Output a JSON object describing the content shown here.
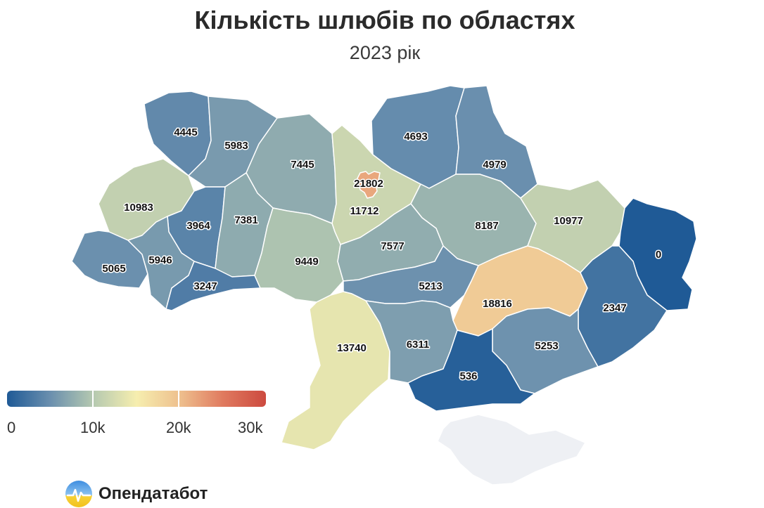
{
  "header": {
    "title": "Кількість шлюбів по областях",
    "subtitle": "2023 рік"
  },
  "legend": {
    "ticks": [
      "0",
      "10k",
      "20k",
      "30k"
    ],
    "min": 0,
    "max": 30000,
    "colors": [
      "#1f5a96",
      "#6a8fae",
      "#b5c9b0",
      "#f6eeaf",
      "#eec08e",
      "#e07a5f",
      "#cc4a3f"
    ]
  },
  "colors": {
    "crimea": "#eef0f4",
    "label_outline": "#ffffff"
  },
  "regions": [
    {
      "id": "volyn",
      "value": 4445
    },
    {
      "id": "rivne",
      "value": 5983
    },
    {
      "id": "zhytomyr",
      "value": 7445
    },
    {
      "id": "kyiv-city",
      "value": 21802
    },
    {
      "id": "kyiv-oblast",
      "value": 11712
    },
    {
      "id": "chernihiv",
      "value": 4693
    },
    {
      "id": "sumy",
      "value": 4979
    },
    {
      "id": "lviv",
      "value": 10983
    },
    {
      "id": "ternopil",
      "value": 3964
    },
    {
      "id": "khmelnytskyi",
      "value": 7381
    },
    {
      "id": "poltava",
      "value": 8187
    },
    {
      "id": "kharkiv",
      "value": 10977
    },
    {
      "id": "luhansk",
      "value": 0
    },
    {
      "id": "zakarpattia",
      "value": 5065
    },
    {
      "id": "ivano-frankivsk",
      "value": 5946
    },
    {
      "id": "chernivtsi",
      "value": 3247
    },
    {
      "id": "vinnytsia",
      "value": 9449
    },
    {
      "id": "cherkasy",
      "value": 7577
    },
    {
      "id": "kirovohrad",
      "value": 5213
    },
    {
      "id": "dnipropetrovsk",
      "value": 18816
    },
    {
      "id": "donetsk",
      "value": 2347
    },
    {
      "id": "odesa",
      "value": 13740
    },
    {
      "id": "mykolaiv",
      "value": 6311
    },
    {
      "id": "zaporizhzhia",
      "value": 5253
    },
    {
      "id": "kherson",
      "value": 536
    }
  ],
  "brand": {
    "name": "Опендатабот"
  }
}
